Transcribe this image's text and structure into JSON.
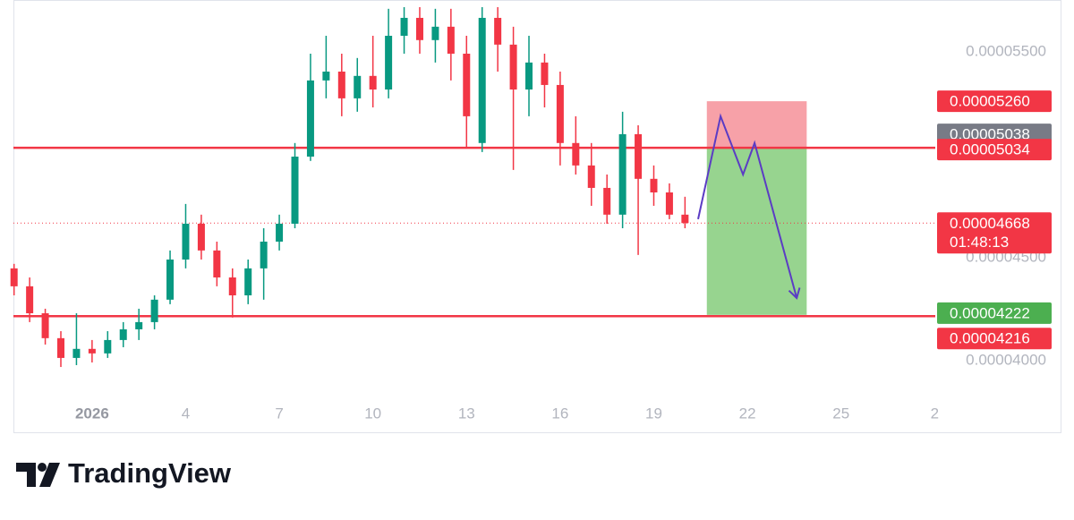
{
  "chart_data": {
    "type": "candlestick",
    "x": [
      -1.5,
      -1.0,
      -0.5,
      0.0,
      0.5,
      1.0,
      1.5,
      2.0,
      2.5,
      3.0,
      3.5,
      4.0,
      4.5,
      5.0,
      5.5,
      6.0,
      6.5,
      7.0,
      7.5,
      8.0,
      8.5,
      9.0,
      9.5,
      10.0,
      10.5,
      11.0,
      11.5,
      12.0,
      12.5,
      13.0,
      13.5,
      14.0,
      14.5,
      15.0,
      15.5,
      16.0,
      16.5,
      17.0,
      17.5,
      18.0,
      18.5,
      19.0,
      19.5,
      20.0
    ],
    "open": [
      4.448e-05,
      4.361e-05,
      4.23e-05,
      4.109e-05,
      4.013e-05,
      4.057e-05,
      4.035e-05,
      4.1e-05,
      4.152e-05,
      4.187e-05,
      4.296e-05,
      4.491e-05,
      4.665e-05,
      4.535e-05,
      4.404e-05,
      4.317e-05,
      4.448e-05,
      4.578e-05,
      4.665e-05,
      4.991e-05,
      5.361e-05,
      5.404e-05,
      5.274e-05,
      5.383e-05,
      5.317e-05,
      5.578e-05,
      5.665e-05,
      5.557e-05,
      5.622e-05,
      5.491e-05,
      5.057e-05,
      5.665e-05,
      5.535e-05,
      5.317e-05,
      5.448e-05,
      5.339e-05,
      5.057e-05,
      4.948e-05,
      4.839e-05,
      4.709e-05,
      5.1e-05,
      4.883e-05,
      4.817e-05,
      4.709e-05
    ],
    "high": [
      4.47e-05,
      4.404e-05,
      4.252e-05,
      4.143e-05,
      4.23e-05,
      4.1e-05,
      4.143e-05,
      4.187e-05,
      4.252e-05,
      4.317e-05,
      4.535e-05,
      4.761e-05,
      4.709e-05,
      4.578e-05,
      4.448e-05,
      4.491e-05,
      4.643e-05,
      4.709e-05,
      5.057e-05,
      5.491e-05,
      5.578e-05,
      5.491e-05,
      5.47e-05,
      5.578e-05,
      5.709e-05,
      5.717e-05,
      5.717e-05,
      5.709e-05,
      5.709e-05,
      5.578e-05,
      5.717e-05,
      5.717e-05,
      5.622e-05,
      5.578e-05,
      5.491e-05,
      5.404e-05,
      5.187e-05,
      5.057e-05,
      4.904e-05,
      5.209e-05,
      5.143e-05,
      4.948e-05,
      4.861e-05,
      4.796e-05
    ],
    "low": [
      4.317e-05,
      4.187e-05,
      4.078e-05,
      3.969e-05,
      3.978e-05,
      3.991e-05,
      4.013e-05,
      4.065e-05,
      4.1e-05,
      4.152e-05,
      4.274e-05,
      4.448e-05,
      4.491e-05,
      4.361e-05,
      4.209e-05,
      4.274e-05,
      4.296e-05,
      4.535e-05,
      4.643e-05,
      4.97e-05,
      5.274e-05,
      5.187e-05,
      5.209e-05,
      5.23e-05,
      5.274e-05,
      5.491e-05,
      5.491e-05,
      5.448e-05,
      5.361e-05,
      5.035e-05,
      5.013e-05,
      5.404e-05,
      4.926e-05,
      5.187e-05,
      5.23e-05,
      4.948e-05,
      4.904e-05,
      4.752e-05,
      4.665e-05,
      4.643e-05,
      4.513e-05,
      4.752e-05,
      4.687e-05,
      4.643e-05
    ],
    "close": [
      4.361e-05,
      4.23e-05,
      4.109e-05,
      4.013e-05,
      4.057e-05,
      4.035e-05,
      4.1e-05,
      4.152e-05,
      4.187e-05,
      4.296e-05,
      4.491e-05,
      4.665e-05,
      4.535e-05,
      4.404e-05,
      4.317e-05,
      4.448e-05,
      4.578e-05,
      4.665e-05,
      4.991e-05,
      5.361e-05,
      5.404e-05,
      5.274e-05,
      5.383e-05,
      5.317e-05,
      5.578e-05,
      5.665e-05,
      5.557e-05,
      5.622e-05,
      5.491e-05,
      5.187e-05,
      5.665e-05,
      5.535e-05,
      5.317e-05,
      5.448e-05,
      5.339e-05,
      5.057e-05,
      4.948e-05,
      4.839e-05,
      4.709e-05,
      5.1e-05,
      4.883e-05,
      4.817e-05,
      4.709e-05,
      4.668e-05
    ],
    "up_color": "#089981",
    "down_color": "#f23645",
    "xlim": [
      -1.52,
      28.02
    ],
    "xticks": [
      {
        "value": 1,
        "label": "2026"
      },
      4,
      7,
      10,
      13,
      16,
      19,
      22,
      25,
      {
        "value": 28,
        "label": "2"
      }
    ],
    "ylim": [
      3.817e-05,
      5.717e-05
    ],
    "yticks": [
      {
        "value": 5.5e-05,
        "label": "0.00005500"
      },
      {
        "value": 4.5e-05,
        "label": "0.00004500"
      },
      {
        "value": 4e-05,
        "label": "0.00004000"
      }
    ],
    "levels": [
      {
        "value": 5.034e-05,
        "color": "#f23645"
      },
      {
        "value": 4.216e-05,
        "color": "#f23645"
      }
    ],
    "current_price": {
      "value": 4.668e-05,
      "label": "0.00004668",
      "countdown": "01:48:13",
      "color": "#f23645"
    },
    "price_labels": [
      {
        "value": 5.26e-05,
        "label": "0.00005260",
        "color": "#f23645"
      },
      {
        "value": 5.038e-05,
        "label": "0.00005038",
        "color": "#787b86"
      },
      {
        "value": 5.034e-05,
        "label": "0.00005034",
        "color": "#f23645"
      },
      {
        "value": 4.222e-05,
        "label": "0.00004222",
        "color": "#4caf50"
      },
      {
        "value": 4.216e-05,
        "label": "0.00004216",
        "color": "#f23645"
      }
    ],
    "position": {
      "x_range": [
        20.7,
        23.9
      ],
      "entry": 5.038e-05,
      "stop": 5.26e-05,
      "target": 4.222e-05,
      "stop_color": "#f7a1a8",
      "target_color": "#97d48f"
    },
    "projection": {
      "x": [
        20.42,
        21.14,
        21.86,
        22.23,
        23.58
      ],
      "values": [
        4.687e-05,
        5.187e-05,
        4.904e-05,
        5.057e-05,
        4.304e-05
      ],
      "color": "#5b3cc4"
    }
  },
  "footer": {
    "brand": "TradingView"
  }
}
